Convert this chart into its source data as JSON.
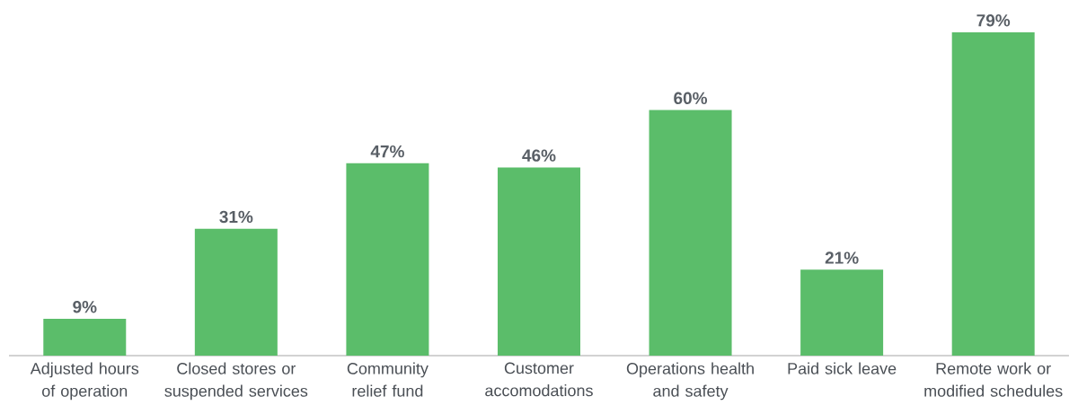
{
  "chart_data": {
    "type": "bar",
    "categories": [
      "Adjusted hours of operation",
      "Closed stores or suspended services",
      "Community relief fund",
      "Customer accomodations",
      "Operations health and safety",
      "Paid sick leave",
      "Remote work or modified schedules"
    ],
    "values": [
      9,
      31,
      47,
      46,
      60,
      21,
      79
    ],
    "value_labels": [
      "9%",
      "31%",
      "47%",
      "46%",
      "60%",
      "21%",
      "79%"
    ],
    "color": "#5bbd6a"
  }
}
